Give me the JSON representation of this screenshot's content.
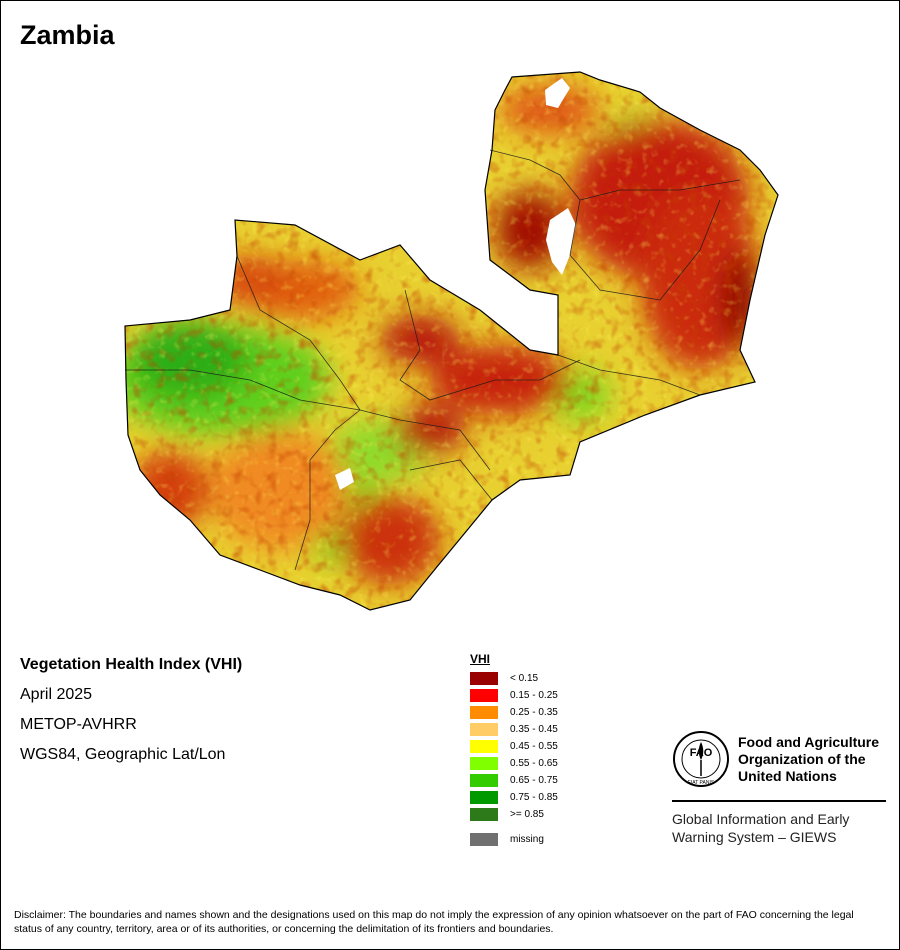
{
  "title": "Zambia",
  "info": {
    "product": "Vegetation Health Index (VHI)",
    "date": "April 2025",
    "sensor": "METOP-AVHRR",
    "projection": "WGS84, Geographic Lat/Lon"
  },
  "legend": {
    "title": "VHI",
    "items": [
      {
        "label": "< 0.15",
        "color": "#990000"
      },
      {
        "label": "0.15 - 0.25",
        "color": "#ff0000"
      },
      {
        "label": "0.25 - 0.35",
        "color": "#ff8c00"
      },
      {
        "label": "0.35 - 0.45",
        "color": "#ffcc66"
      },
      {
        "label": "0.45 - 0.55",
        "color": "#ffff00"
      },
      {
        "label": "0.55 - 0.65",
        "color": "#80ff00"
      },
      {
        "label": "0.65 - 0.75",
        "color": "#33cc00"
      },
      {
        "label": "0.75 - 0.85",
        "color": "#009900"
      },
      {
        "label": ">= 0.85",
        "color": "#2d7a1a"
      }
    ],
    "missing": {
      "label": "missing",
      "color": "#707070"
    }
  },
  "org": {
    "logo_text": "FAO",
    "logo_motto": "FIAT PANIS",
    "name_lines": [
      "Food and Agriculture",
      "Organization of the",
      "United Nations"
    ],
    "system_lines": [
      "Global Information and Early",
      "Warning System – GIEWS"
    ]
  },
  "disclaimer": "Disclaimer: The boundaries and names shown and the designations used on this map do not imply the expression of any opinion whatsoever on the part of FAO concerning the legal status of any country, territory, area or of its authorities, or concerning the delimitation of its frontiers and boundaries."
}
